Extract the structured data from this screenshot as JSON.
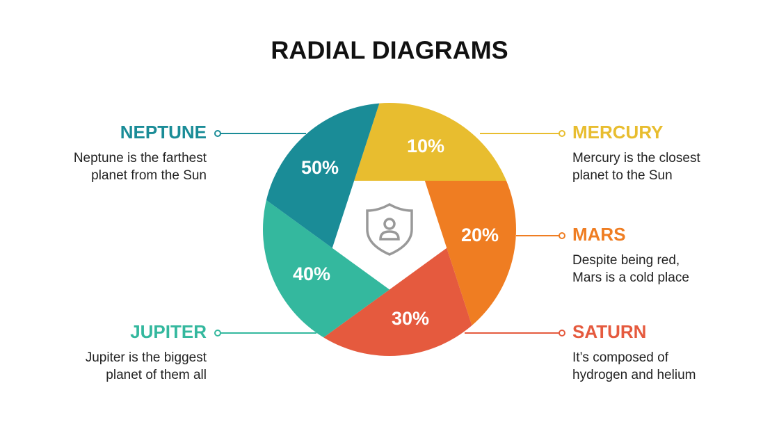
{
  "title": "RADIAL DIAGRAMS",
  "segments": [
    {
      "name": "MERCURY",
      "description": [
        "Mercury is the closest",
        "planet to the Sun"
      ],
      "label": "10%",
      "color": "#e8bd2f"
    },
    {
      "name": "MARS",
      "description": [
        "Despite being red,",
        "Mars is a cold place"
      ],
      "label": "20%",
      "color": "#ef7d22"
    },
    {
      "name": "SATURN",
      "description": [
        "It’s composed of",
        "hydrogen and helium"
      ],
      "label": "30%",
      "color": "#e55a3e"
    },
    {
      "name": "JUPITER",
      "description": [
        "Jupiter is the biggest",
        "planet of them all"
      ],
      "label": "40%",
      "color": "#34b89e"
    },
    {
      "name": "NEPTUNE",
      "description": [
        "Neptune is the farthest",
        "planet from the Sun"
      ],
      "label": "50%",
      "color": "#1a8c97"
    }
  ]
}
